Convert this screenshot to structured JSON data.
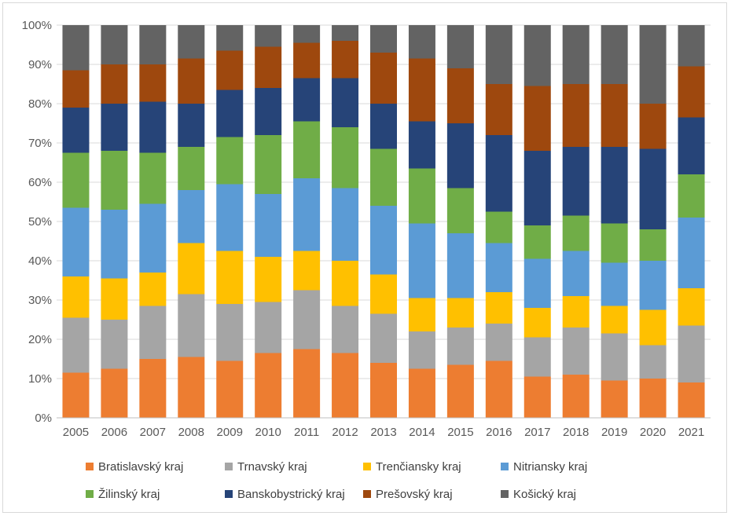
{
  "chart_data": {
    "type": "bar",
    "stacked": true,
    "percent_stacked": true,
    "title": "",
    "xlabel": "",
    "ylabel": "",
    "ylim": [
      0,
      100
    ],
    "y_ticks": [
      "0%",
      "10%",
      "20%",
      "30%",
      "40%",
      "50%",
      "60%",
      "70%",
      "80%",
      "90%",
      "100%"
    ],
    "grid": true,
    "legend_position": "bottom",
    "categories": [
      "2005",
      "2006",
      "2007",
      "2008",
      "2009",
      "2010",
      "2011",
      "2012",
      "2013",
      "2014",
      "2015",
      "2016",
      "2017",
      "2018",
      "2019",
      "2020",
      "2021"
    ],
    "series": [
      {
        "name": "Bratislavský kraj",
        "color": "#ED7D31",
        "values": [
          11.5,
          12.5,
          15,
          15.5,
          14.5,
          16.5,
          17.5,
          16.5,
          14,
          12.5,
          13.5,
          14.5,
          10.5,
          11,
          9.5,
          10,
          9
        ]
      },
      {
        "name": "Trnavský kraj",
        "color": "#A5A5A5",
        "values": [
          14,
          12.5,
          13.5,
          16,
          14.5,
          13,
          15,
          12,
          12.5,
          9.5,
          9.5,
          9.5,
          10,
          12,
          12,
          8.5,
          14.5
        ]
      },
      {
        "name": "Trenčiansky kraj",
        "color": "#FFC000",
        "values": [
          10.5,
          10.5,
          8.5,
          13,
          13.5,
          11.5,
          10,
          11.5,
          10,
          8.5,
          7.5,
          8,
          7.5,
          8,
          7,
          9,
          9.5
        ]
      },
      {
        "name": "Nitriansky kraj",
        "color": "#5B9BD5",
        "values": [
          17.5,
          17.5,
          17.5,
          13.5,
          17,
          16,
          18.5,
          18.5,
          17.5,
          19,
          16.5,
          12.5,
          12.5,
          11.5,
          11,
          12.5,
          18
        ]
      },
      {
        "name": "Žilinský kraj",
        "color": "#70AD47",
        "values": [
          14,
          15,
          13,
          11,
          12,
          15,
          14.5,
          15.5,
          14.5,
          14,
          11.5,
          8,
          8.5,
          9,
          10,
          8,
          11
        ]
      },
      {
        "name": "Banskobystrický kraj",
        "color": "#264478",
        "values": [
          11.5,
          12,
          13,
          11,
          12,
          12,
          11,
          12.5,
          11.5,
          12,
          16.5,
          19.5,
          19,
          17.5,
          19.5,
          20.5,
          14.5
        ]
      },
      {
        "name": "Prešovský kraj",
        "color": "#9E480E",
        "values": [
          9.5,
          10,
          9.5,
          11.5,
          10,
          10.5,
          9,
          9.5,
          13,
          16,
          14,
          13,
          16.5,
          16,
          16,
          11.5,
          13
        ]
      },
      {
        "name": "Košický kraj",
        "color": "#636363",
        "values": [
          11.5,
          10,
          10,
          8.5,
          6.5,
          5.5,
          4.5,
          4,
          7,
          8.5,
          11,
          15,
          15.5,
          15,
          15,
          20,
          10.5
        ]
      }
    ]
  }
}
